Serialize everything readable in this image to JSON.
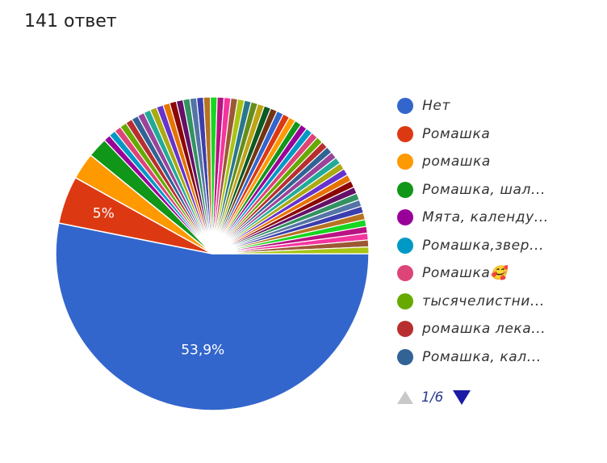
{
  "header": {
    "count_text": "141 ответ"
  },
  "chart_data": {
    "type": "pie",
    "slices": [
      {
        "label": "Нет",
        "value": 53.9,
        "color": "#3366cc",
        "display": "53,9%"
      },
      {
        "label": "Ромашка",
        "value": 5,
        "color": "#dc3912",
        "display": "5%"
      },
      {
        "label": "ромашка",
        "value": 2.8,
        "color": "#ff9900"
      },
      {
        "label": "Ромашка, шал...",
        "value": 2.1,
        "color": "#109618"
      },
      {
        "label": "Мята, календу...",
        "value": 0.71,
        "color": "#990099"
      },
      {
        "label": "Ромашка,звер...",
        "value": 0.71,
        "color": "#0099c6"
      },
      {
        "label": "Ромашка🥰",
        "value": 0.71,
        "color": "#dd4477"
      },
      {
        "label": "тысячелистни...",
        "value": 0.71,
        "color": "#66aa00"
      },
      {
        "label": "ромашка лека...",
        "value": 0.71,
        "color": "#b82e2e"
      },
      {
        "label": "Ромашка, кал...",
        "value": 0.71,
        "color": "#316395"
      }
    ],
    "other_slices_count": 47,
    "other_slice_value": 0.71,
    "other_palette": [
      "#994499",
      "#22aa99",
      "#aaaa11",
      "#6633cc",
      "#e67300",
      "#8b0707",
      "#651067",
      "#329262",
      "#5574a6",
      "#3b3eac",
      "#b77322",
      "#16d620",
      "#b91383",
      "#f4359e",
      "#9c5935",
      "#a9c413",
      "#2a778d",
      "#668d1c",
      "#bea413",
      "#0c5922",
      "#743411",
      "#3366cc",
      "#dc3912",
      "#ff9900",
      "#109618",
      "#990099",
      "#0099c6",
      "#dd4477",
      "#66aa00",
      "#b82e2e",
      "#316395"
    ],
    "legend_position": "right"
  },
  "pager": {
    "text": "1/6"
  }
}
